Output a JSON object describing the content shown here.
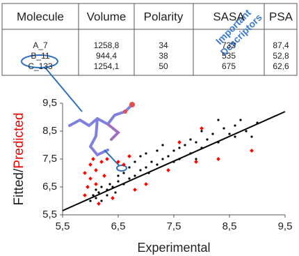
{
  "table": {
    "header": [
      "Molecule",
      "Volume",
      "Polarity",
      "SASA",
      "PSA"
    ],
    "rows": [
      [
        "A_7",
        "1258,8",
        "34",
        "733",
        "87,4"
      ],
      [
        "B_11",
        "944,4",
        "38",
        "535",
        "52,8"
      ],
      [
        "C_133",
        "1254,1",
        "50",
        "675",
        "62,6"
      ]
    ],
    "annotation": [
      "Important",
      "Descriptors"
    ]
  },
  "chart_data": {
    "type": "scatter",
    "xlabel": "Experimental",
    "ylabel": [
      "Fitted/",
      "Predicted"
    ],
    "xlim": [
      5.5,
      9.5
    ],
    "ylim": [
      5.5,
      9.5
    ],
    "xticks": [
      {
        "value": 5.5,
        "label": "5,5"
      },
      {
        "value": 6.5,
        "label": "6,5"
      },
      {
        "value": 7.5,
        "label": "7,5"
      },
      {
        "value": 8.5,
        "label": "8,5"
      },
      {
        "value": 9.5,
        "label": "9,5"
      }
    ],
    "yticks": [
      {
        "value": 5.5,
        "label": "5,5"
      },
      {
        "value": 6.5,
        "label": "6,5"
      },
      {
        "value": 7.5,
        "label": "7,5"
      },
      {
        "value": 8.5,
        "label": "8,5"
      },
      {
        "value": 9.5,
        "label": "9,5"
      }
    ],
    "fit": {
      "color": "#000000",
      "x": [
        5.5,
        9.5
      ],
      "y": [
        5.65,
        9.2
      ]
    },
    "series": [
      {
        "color": "#000000",
        "x": [
          6.0,
          6.05,
          6.1,
          6.1,
          6.15,
          6.2,
          6.2,
          6.3,
          6.3,
          6.35,
          6.4,
          6.45,
          6.5,
          6.5,
          6.6,
          6.6,
          6.7,
          6.7,
          6.8,
          6.8,
          6.9,
          6.9,
          7.0,
          7.0,
          7.05,
          7.1,
          7.2,
          7.2,
          7.3,
          7.3,
          7.4,
          7.5,
          7.5,
          7.6,
          7.6,
          7.7,
          7.8,
          7.8,
          7.9,
          8.0,
          8.0,
          8.1,
          8.2,
          8.3,
          8.4,
          8.5,
          8.6,
          8.7,
          8.8,
          8.9,
          9.0,
          7.9,
          8.3,
          8.6
        ],
        "values": [
          6.0,
          6.2,
          6.1,
          6.4,
          6.3,
          6.0,
          6.5,
          6.4,
          6.2,
          6.6,
          6.5,
          6.3,
          6.7,
          6.9,
          6.6,
          7.0,
          6.8,
          7.2,
          6.9,
          7.4,
          7.1,
          7.6,
          7.2,
          7.7,
          7.0,
          7.4,
          7.3,
          7.8,
          7.5,
          8.0,
          7.6,
          7.4,
          7.8,
          7.9,
          7.5,
          8.0,
          7.7,
          8.2,
          8.1,
          7.9,
          8.5,
          8.2,
          8.4,
          8.1,
          8.6,
          8.4,
          8.7,
          8.9,
          8.5,
          8.3,
          8.8,
          7.5,
          8.9,
          8.3
        ]
      },
      {
        "color": "#ff0000",
        "x": [
          5.9,
          5.9,
          5.95,
          6.0,
          6.0,
          6.05,
          6.1,
          6.1,
          6.15,
          6.2,
          6.25,
          6.3,
          6.4,
          6.5,
          6.6,
          6.8,
          7.0,
          7.4,
          7.6,
          7.9,
          8.0,
          8.3,
          8.9,
          6.7
        ],
        "values": [
          6.2,
          7.0,
          6.5,
          7.3,
          6.8,
          7.5,
          6.6,
          7.1,
          5.9,
          7.4,
          6.9,
          7.5,
          6.1,
          7.4,
          7.3,
          6.4,
          6.6,
          7.1,
          8.1,
          7.4,
          8.6,
          7.5,
          7.8,
          7.6
        ]
      }
    ]
  }
}
